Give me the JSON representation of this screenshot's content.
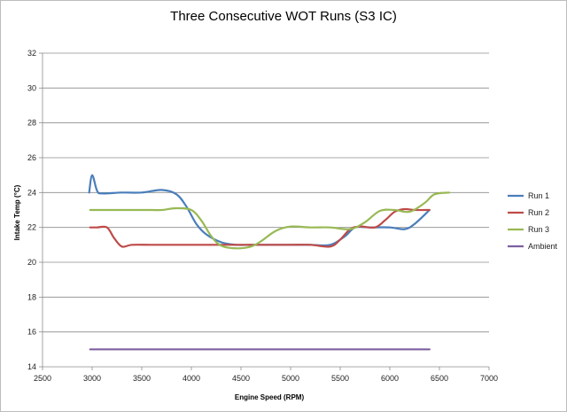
{
  "chart_data": {
    "type": "line",
    "title": "Three Consecutive WOT Runs (S3 IC)",
    "xlabel": "Engine Speed (RPM)",
    "ylabel": "Intake Temp (°C)",
    "xlim": [
      2500,
      7000
    ],
    "ylim": [
      14,
      32
    ],
    "xticks": [
      2500,
      3000,
      3500,
      4000,
      4500,
      5000,
      5500,
      6000,
      6500,
      7000
    ],
    "yticks": [
      14,
      16,
      18,
      20,
      22,
      24,
      26,
      28,
      30,
      32
    ],
    "grid": "horizontal",
    "legend": "right",
    "series": [
      {
        "name": "Run 1",
        "color": "#4a7ebb",
        "x": [
          2970,
          3000,
          3050,
          3100,
          3300,
          3500,
          3700,
          3850,
          3950,
          4050,
          4150,
          4300,
          4450,
          4600,
          4800,
          5000,
          5200,
          5400,
          5550,
          5650,
          5800,
          6000,
          6150,
          6250,
          6400
        ],
        "y": [
          24.0,
          25.0,
          24.1,
          23.95,
          24.0,
          24.0,
          24.15,
          23.9,
          23.2,
          22.2,
          21.6,
          21.15,
          21.0,
          21.0,
          21.0,
          21.0,
          21.0,
          21.0,
          21.5,
          22.0,
          22.0,
          22.0,
          21.9,
          22.2,
          23.0
        ]
      },
      {
        "name": "Run 2",
        "color": "#be4b48",
        "x": [
          2980,
          3050,
          3150,
          3220,
          3300,
          3400,
          3600,
          3800,
          4000,
          4200,
          4400,
          4600,
          4800,
          5000,
          5200,
          5400,
          5500,
          5600,
          5700,
          5850,
          5950,
          6050,
          6150,
          6250,
          6400
        ],
        "y": [
          22.0,
          22.0,
          22.0,
          21.4,
          20.9,
          21.0,
          21.0,
          21.0,
          21.0,
          21.0,
          21.0,
          21.0,
          21.0,
          21.0,
          21.0,
          20.9,
          21.3,
          21.9,
          22.05,
          22.0,
          22.4,
          22.9,
          23.05,
          23.0,
          23.0
        ]
      },
      {
        "name": "Run 3",
        "color": "#98b954",
        "x": [
          2980,
          3200,
          3400,
          3600,
          3700,
          3850,
          4000,
          4100,
          4200,
          4300,
          4450,
          4600,
          4700,
          4850,
          5000,
          5200,
          5400,
          5600,
          5750,
          5900,
          6050,
          6200,
          6350,
          6450,
          6600
        ],
        "y": [
          23.0,
          23.0,
          23.0,
          23.0,
          23.0,
          23.1,
          23.0,
          22.4,
          21.5,
          20.95,
          20.8,
          20.9,
          21.2,
          21.8,
          22.05,
          22.0,
          22.0,
          21.9,
          22.3,
          22.95,
          23.0,
          22.9,
          23.4,
          23.9,
          24.0
        ]
      },
      {
        "name": "Ambient",
        "color": "#7d60a0",
        "x": [
          2980,
          6400
        ],
        "y": [
          15.0,
          15.0
        ]
      }
    ]
  }
}
